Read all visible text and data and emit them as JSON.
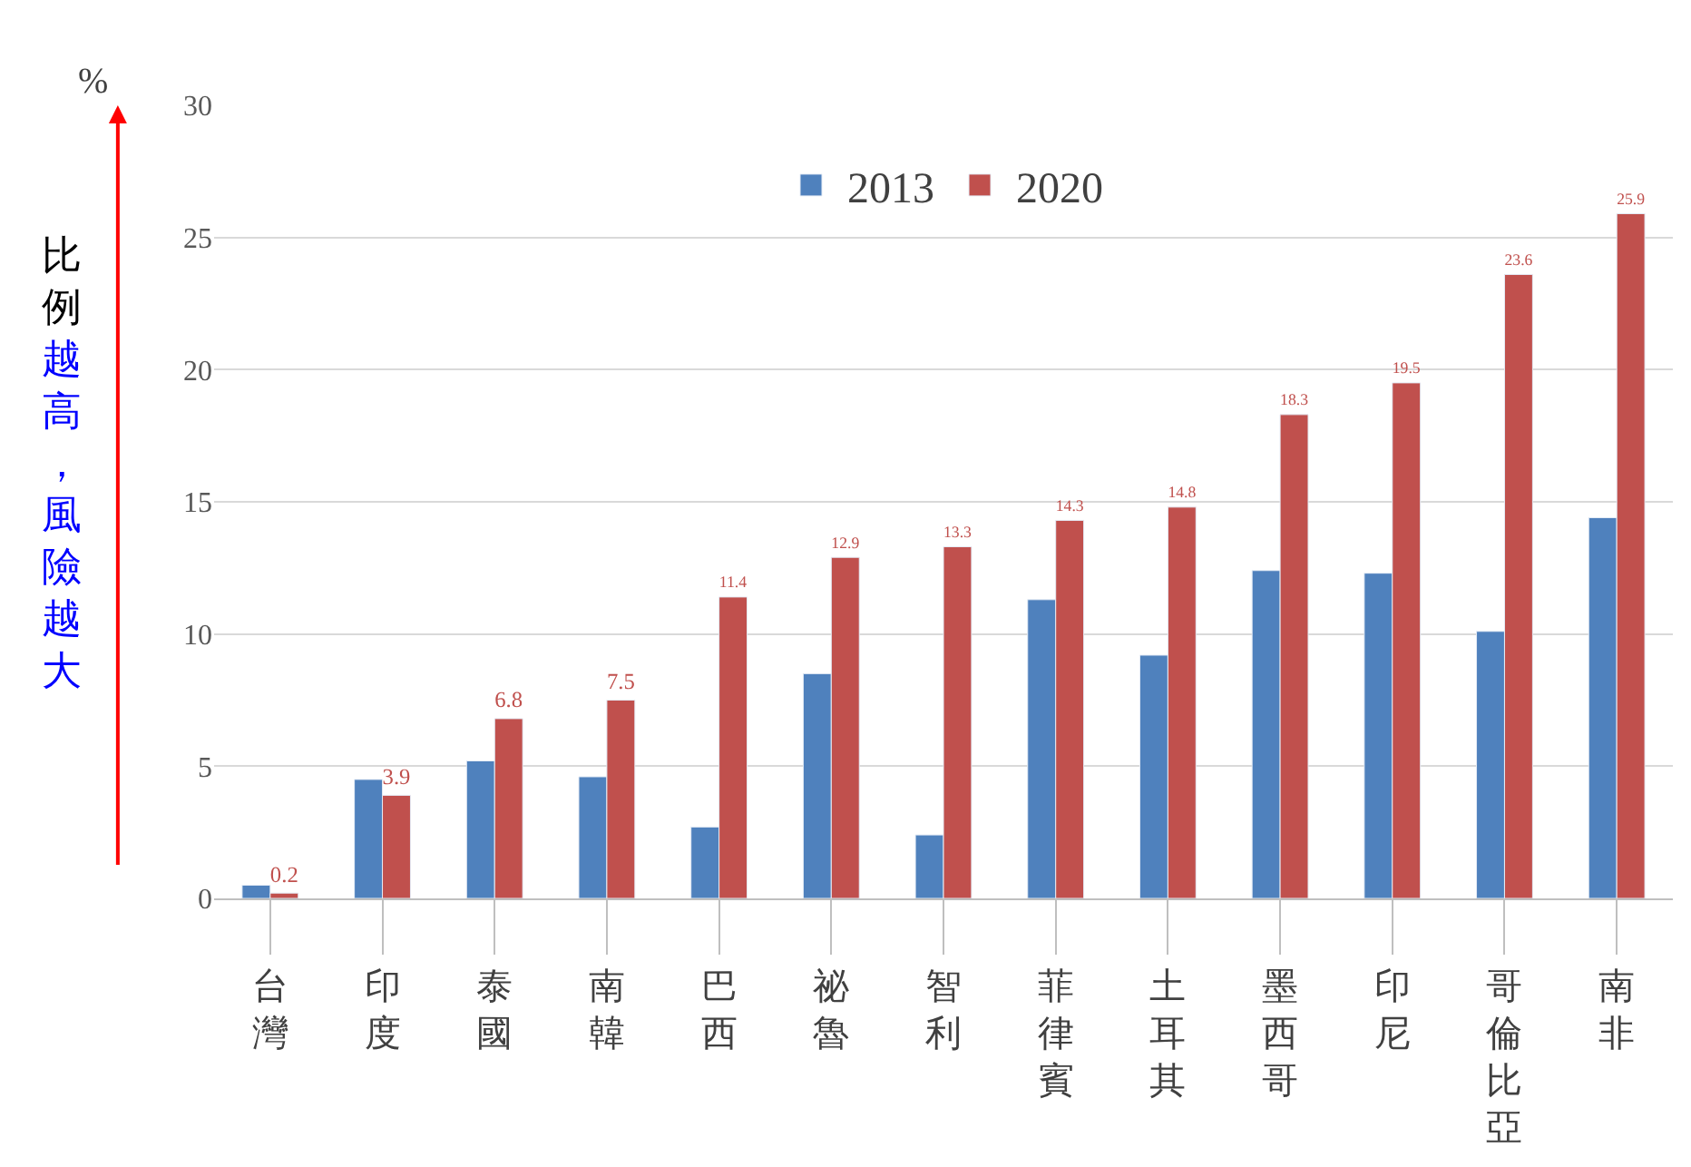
{
  "chart_data": {
    "type": "bar",
    "ylabel": "%",
    "annotations": [
      "比例越高，風險越大"
    ],
    "categories": [
      "台灣",
      "印度",
      "泰國",
      "南韓",
      "巴西",
      "祕魯",
      "智利",
      "菲律賓",
      "土耳其",
      "墨西哥",
      "印尼",
      "哥倫比亞",
      "南非"
    ],
    "series": [
      {
        "name": "2013",
        "color": "#4f81bd",
        "values": [
          0.5,
          4.5,
          5.2,
          4.6,
          2.7,
          8.5,
          2.4,
          11.3,
          9.2,
          12.4,
          12.3,
          10.1,
          14.4
        ]
      },
      {
        "name": "2020",
        "color": "#c0504d",
        "values": [
          0.2,
          3.9,
          6.8,
          7.5,
          11.4,
          12.9,
          13.3,
          14.3,
          14.8,
          18.3,
          19.5,
          23.6,
          25.9
        ],
        "value_labels": [
          "0.2",
          "3.9",
          "6.8",
          "7.5",
          "11.4",
          "12.9",
          "13.3",
          "14.3",
          "14.8",
          "18.3",
          "19.5",
          "23.6",
          "25.9"
        ]
      }
    ],
    "ylim": [
      0,
      30
    ],
    "yticks": [
      0,
      5,
      10,
      15,
      20,
      25,
      30
    ],
    "grid": "y",
    "legend": "top"
  }
}
